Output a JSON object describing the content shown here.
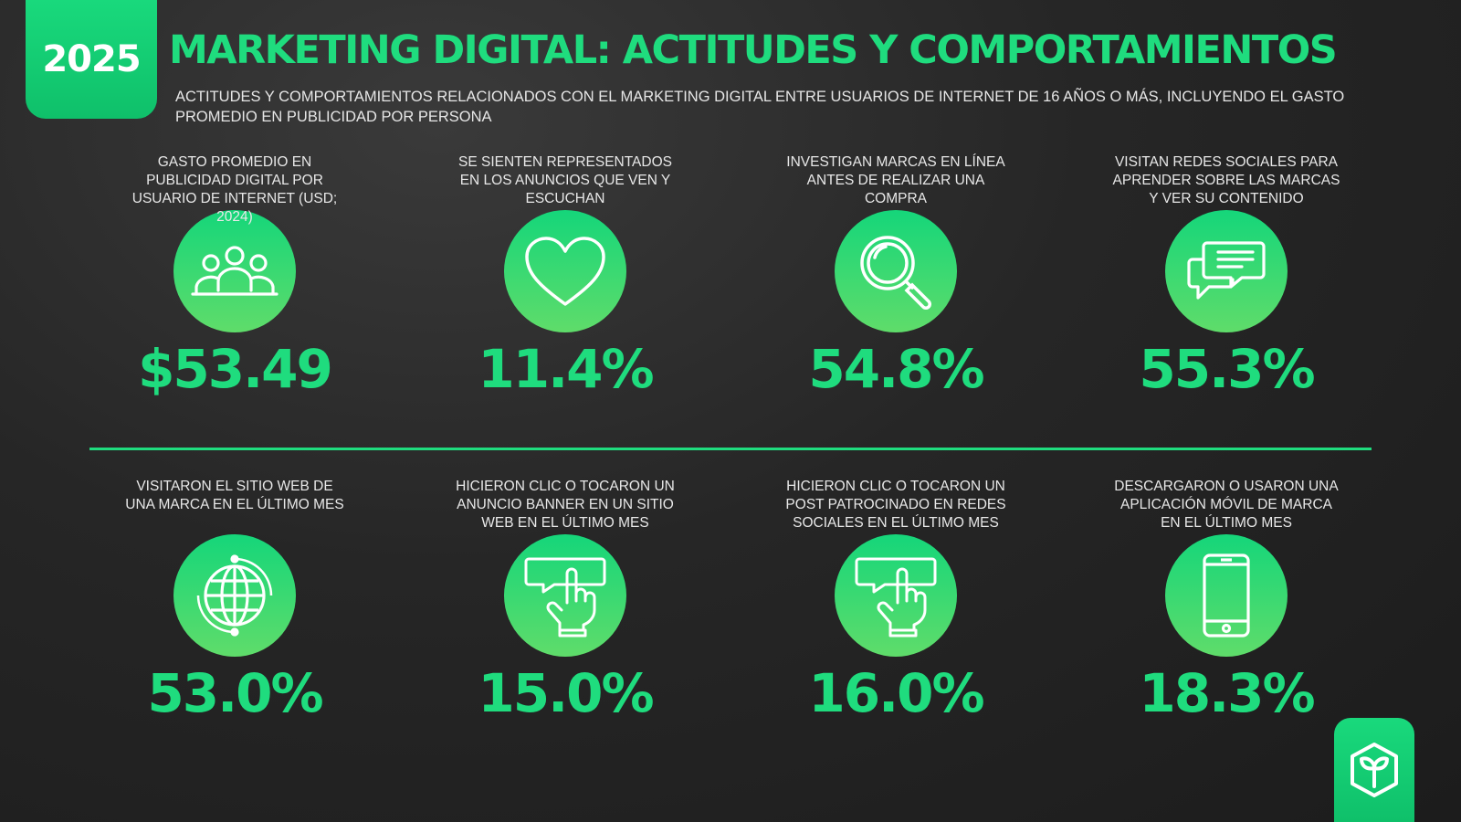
{
  "header": {
    "year": "2025",
    "title": "MARKETING DIGITAL: ACTITUDES Y COMPORTAMIENTOS",
    "subtitle": "ACTITUDES Y COMPORTAMIENTOS RELACIONADOS CON EL MARKETING DIGITAL ENTRE USUARIOS DE INTERNET DE 16 AÑOS O MÁS, INCLUYENDO EL GASTO PROMEDIO EN PUBLICIDAD POR PERSONA"
  },
  "colors": {
    "accent": "#1fdc7e",
    "background": "#262626"
  },
  "row1": [
    {
      "icon": "people-icon",
      "label": "GASTO PROMEDIO EN PUBLICIDAD DIGITAL POR USUARIO DE INTERNET (USD; 2024)",
      "value": "$53.49"
    },
    {
      "icon": "heart-icon",
      "label": "SE SIENTEN REPRESENTADOS EN LOS ANUNCIOS QUE VEN Y ESCUCHAN",
      "value": "11.4%"
    },
    {
      "icon": "magnifier-icon",
      "label": "INVESTIGAN MARCAS EN LÍNEA ANTES DE REALIZAR UNA COMPRA",
      "value": "54.8%"
    },
    {
      "icon": "chat-bubbles-icon",
      "label": "VISITAN REDES SOCIALES PARA APRENDER SOBRE LAS MARCAS Y VER SU CONTENIDO",
      "value": "55.3%"
    }
  ],
  "row2": [
    {
      "icon": "globe-icon",
      "label": "VISITARON EL SITIO WEB DE UNA MARCA EN EL ÚLTIMO MES",
      "value": "53.0%"
    },
    {
      "icon": "tap-banner-icon",
      "label": "HICIERON CLIC O TOCARON UN ANUNCIO BANNER EN UN SITIO WEB EN EL ÚLTIMO MES",
      "value": "15.0%"
    },
    {
      "icon": "tap-post-icon",
      "label": "HICIERON CLIC O TOCARON UN POST PATROCINADO EN REDES SOCIALES EN EL ÚLTIMO MES",
      "value": "16.0%"
    },
    {
      "icon": "smartphone-icon",
      "label": "DESCARGARON O USARON UNA APLICACIÓN MÓVIL DE MARCA EN EL ÚLTIMO MES",
      "value": "18.3%"
    }
  ]
}
